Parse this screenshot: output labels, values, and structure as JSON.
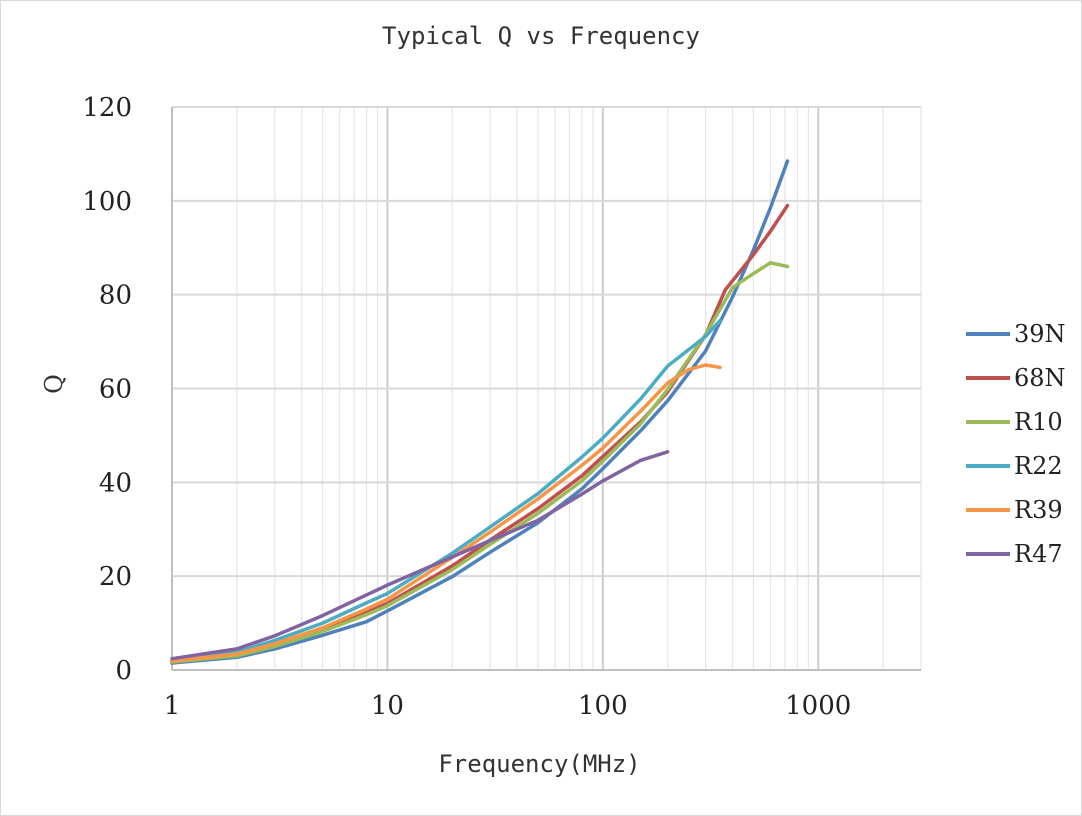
{
  "chart_data": {
    "type": "line",
    "title": "Typical Q vs Frequency",
    "xlabel": "Frequency(MHz)",
    "ylabel": "Q",
    "xscale": "log",
    "xlim": [
      1,
      3000
    ],
    "ylim": [
      0,
      120
    ],
    "x_ticks": [
      1,
      10,
      100,
      1000
    ],
    "x_tick_labels": [
      "1",
      "10",
      "100",
      "1000"
    ],
    "y_ticks": [
      0,
      20,
      40,
      60,
      80,
      100,
      120
    ],
    "y_tick_labels": [
      "0",
      "20",
      "40",
      "60",
      "80",
      "100",
      "120"
    ],
    "grid": true,
    "legend_position": "right",
    "series": [
      {
        "name": "39N",
        "color": "#4F81BD",
        "points": [
          [
            1,
            1.5
          ],
          [
            2,
            2.7
          ],
          [
            3,
            4.5
          ],
          [
            5,
            7.4
          ],
          [
            8,
            10.3
          ],
          [
            10,
            12.6
          ],
          [
            20,
            19.9
          ],
          [
            30,
            25.1
          ],
          [
            50,
            31.4
          ],
          [
            80,
            38.6
          ],
          [
            100,
            42.9
          ],
          [
            150,
            51.0
          ],
          [
            200,
            57.4
          ],
          [
            300,
            68.0
          ],
          [
            400,
            79.5
          ],
          [
            500,
            89.5
          ],
          [
            600,
            98.5
          ],
          [
            720,
            108.5
          ]
        ]
      },
      {
        "name": "68N",
        "color": "#C0504D",
        "points": [
          [
            1,
            1.8
          ],
          [
            2,
            3.3
          ],
          [
            3,
            5.3
          ],
          [
            5,
            8.6
          ],
          [
            8,
            12.3
          ],
          [
            10,
            14.2
          ],
          [
            20,
            22.2
          ],
          [
            30,
            27.7
          ],
          [
            50,
            34.4
          ],
          [
            80,
            41.4
          ],
          [
            100,
            45.5
          ],
          [
            150,
            52.9
          ],
          [
            200,
            59.3
          ],
          [
            300,
            71.4
          ],
          [
            370,
            81.0
          ],
          [
            500,
            88.5
          ],
          [
            600,
            93.5
          ],
          [
            720,
            99.0
          ]
        ]
      },
      {
        "name": "R10",
        "color": "#9BBB59",
        "points": [
          [
            1,
            1.7
          ],
          [
            2,
            3.0
          ],
          [
            3,
            5.0
          ],
          [
            5,
            8.2
          ],
          [
            8,
            11.8
          ],
          [
            10,
            13.7
          ],
          [
            20,
            21.4
          ],
          [
            30,
            26.8
          ],
          [
            50,
            33.4
          ],
          [
            80,
            40.3
          ],
          [
            100,
            44.5
          ],
          [
            150,
            52.5
          ],
          [
            200,
            59.8
          ],
          [
            300,
            71.5
          ],
          [
            400,
            81.5
          ],
          [
            500,
            84.5
          ],
          [
            600,
            86.8
          ],
          [
            720,
            86.0
          ]
        ]
      },
      {
        "name": "R22",
        "color": "#4BACC6",
        "points": [
          [
            1,
            2.0
          ],
          [
            2,
            3.8
          ],
          [
            3,
            6.3
          ],
          [
            5,
            10.0
          ],
          [
            8,
            14.3
          ],
          [
            10,
            16.3
          ],
          [
            20,
            24.9
          ],
          [
            30,
            30.5
          ],
          [
            50,
            37.6
          ],
          [
            80,
            45.4
          ],
          [
            100,
            49.4
          ],
          [
            150,
            57.8
          ],
          [
            200,
            64.8
          ],
          [
            300,
            71.1
          ],
          [
            350,
            74.5
          ]
        ]
      },
      {
        "name": "R39",
        "color": "#F79646",
        "points": [
          [
            1,
            1.9
          ],
          [
            2,
            3.4
          ],
          [
            3,
            5.6
          ],
          [
            5,
            9.0
          ],
          [
            8,
            13.0
          ],
          [
            10,
            15.1
          ],
          [
            20,
            24.0
          ],
          [
            30,
            29.4
          ],
          [
            50,
            36.5
          ],
          [
            80,
            43.6
          ],
          [
            100,
            47.3
          ],
          [
            150,
            55.2
          ],
          [
            200,
            61.2
          ],
          [
            250,
            64.0
          ],
          [
            300,
            65.0
          ],
          [
            350,
            64.5
          ]
        ]
      },
      {
        "name": "R47",
        "color": "#8064A2",
        "points": [
          [
            1,
            2.4
          ],
          [
            2,
            4.5
          ],
          [
            3,
            7.3
          ],
          [
            5,
            11.6
          ],
          [
            8,
            16.0
          ],
          [
            10,
            18.1
          ],
          [
            20,
            24.1
          ],
          [
            30,
            27.6
          ],
          [
            50,
            31.9
          ],
          [
            80,
            37.5
          ],
          [
            100,
            40.3
          ],
          [
            150,
            44.7
          ],
          [
            200,
            46.5
          ]
        ]
      }
    ]
  }
}
